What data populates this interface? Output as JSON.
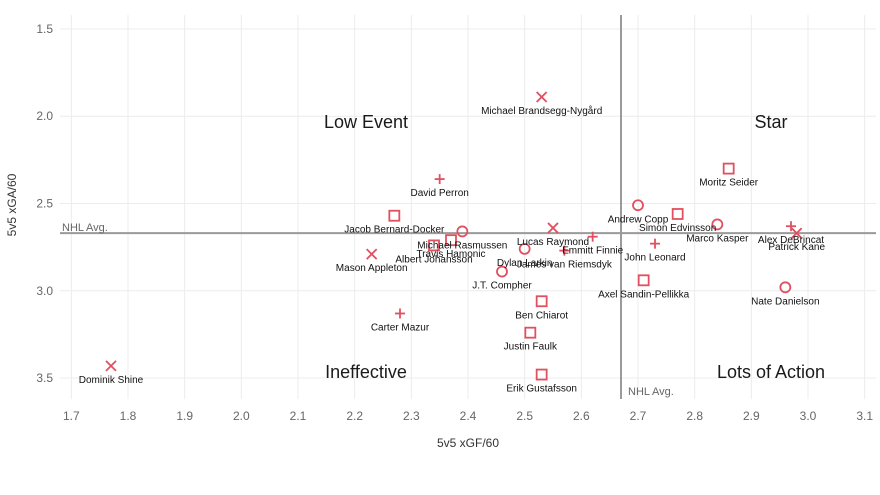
{
  "chart_data": {
    "type": "scatter",
    "xlabel": "5v5 xGF/60",
    "ylabel": "5v5 xGA/60",
    "xlim": [
      1.68,
      3.12
    ],
    "ylim": [
      1.42,
      3.62
    ],
    "y_inverted": true,
    "x_ticks": [
      "1.7",
      "1.8",
      "1.9",
      "2.0",
      "2.1",
      "2.2",
      "2.3",
      "2.4",
      "2.5",
      "2.6",
      "2.7",
      "2.8",
      "2.9",
      "3.0",
      "3.1"
    ],
    "y_ticks": [
      "1.5",
      "2.0",
      "2.5",
      "3.0",
      "3.5"
    ],
    "grid": true,
    "marker_color": "#e05060",
    "nhl_avg": {
      "x": 2.67,
      "y": 2.67,
      "x_label": "NHL Avg.",
      "y_label": "NHL Avg."
    },
    "quadrants": {
      "top_left": "Low Event",
      "top_right": "Star",
      "bottom_left": "Ineffective",
      "bottom_right": "Lots of Action"
    },
    "points": [
      {
        "name": "Michael Brandsegg-Nygård",
        "x": 2.53,
        "y": 1.89,
        "marker": "x"
      },
      {
        "name": "Moritz Seider",
        "x": 2.86,
        "y": 2.3,
        "marker": "square"
      },
      {
        "name": "David Perron",
        "x": 2.35,
        "y": 2.36,
        "marker": "plus"
      },
      {
        "name": "Andrew Copp",
        "x": 2.7,
        "y": 2.51,
        "marker": "circle"
      },
      {
        "name": "Jacob Bernard-Docker",
        "x": 2.27,
        "y": 2.57,
        "marker": "square"
      },
      {
        "name": "Simon Edvinsson",
        "x": 2.77,
        "y": 2.56,
        "marker": "square"
      },
      {
        "name": "Marco Kasper",
        "x": 2.84,
        "y": 2.62,
        "marker": "circle"
      },
      {
        "name": "Alex DeBrincat",
        "x": 2.97,
        "y": 2.63,
        "marker": "plus"
      },
      {
        "name": "Patrick Kane",
        "x": 2.98,
        "y": 2.67,
        "marker": "x"
      },
      {
        "name": "Lucas Raymond",
        "x": 2.55,
        "y": 2.64,
        "marker": "x"
      },
      {
        "name": "Michael Rasmussen",
        "x": 2.39,
        "y": 2.66,
        "marker": "circle"
      },
      {
        "name": "Emmitt Finnie",
        "x": 2.62,
        "y": 2.69,
        "marker": "plus"
      },
      {
        "name": "John Leonard",
        "x": 2.73,
        "y": 2.73,
        "marker": "plus"
      },
      {
        "name": "Albert Johansson",
        "x": 2.34,
        "y": 2.74,
        "marker": "square"
      },
      {
        "name": "Travis Hamonic",
        "x": 2.37,
        "y": 2.71,
        "marker": "square"
      },
      {
        "name": "Dylan Larkin",
        "x": 2.5,
        "y": 2.76,
        "marker": "circle"
      },
      {
        "name": "James van Riemsdyk",
        "x": 2.57,
        "y": 2.77,
        "marker": "plus"
      },
      {
        "name": "Mason Appleton",
        "x": 2.23,
        "y": 2.79,
        "marker": "x"
      },
      {
        "name": "J.T. Compher",
        "x": 2.46,
        "y": 2.89,
        "marker": "circle"
      },
      {
        "name": "Axel Sandin-Pellikka",
        "x": 2.71,
        "y": 2.94,
        "marker": "square"
      },
      {
        "name": "Nate Danielson",
        "x": 2.96,
        "y": 2.98,
        "marker": "circle"
      },
      {
        "name": "Ben Chiarot",
        "x": 2.53,
        "y": 3.06,
        "marker": "square"
      },
      {
        "name": "Carter Mazur",
        "x": 2.28,
        "y": 3.13,
        "marker": "plus"
      },
      {
        "name": "Justin Faulk",
        "x": 2.51,
        "y": 3.24,
        "marker": "square"
      },
      {
        "name": "Dominik Shine",
        "x": 1.77,
        "y": 3.43,
        "marker": "x"
      },
      {
        "name": "Erik Gustafsson",
        "x": 2.53,
        "y": 3.48,
        "marker": "square"
      }
    ]
  }
}
